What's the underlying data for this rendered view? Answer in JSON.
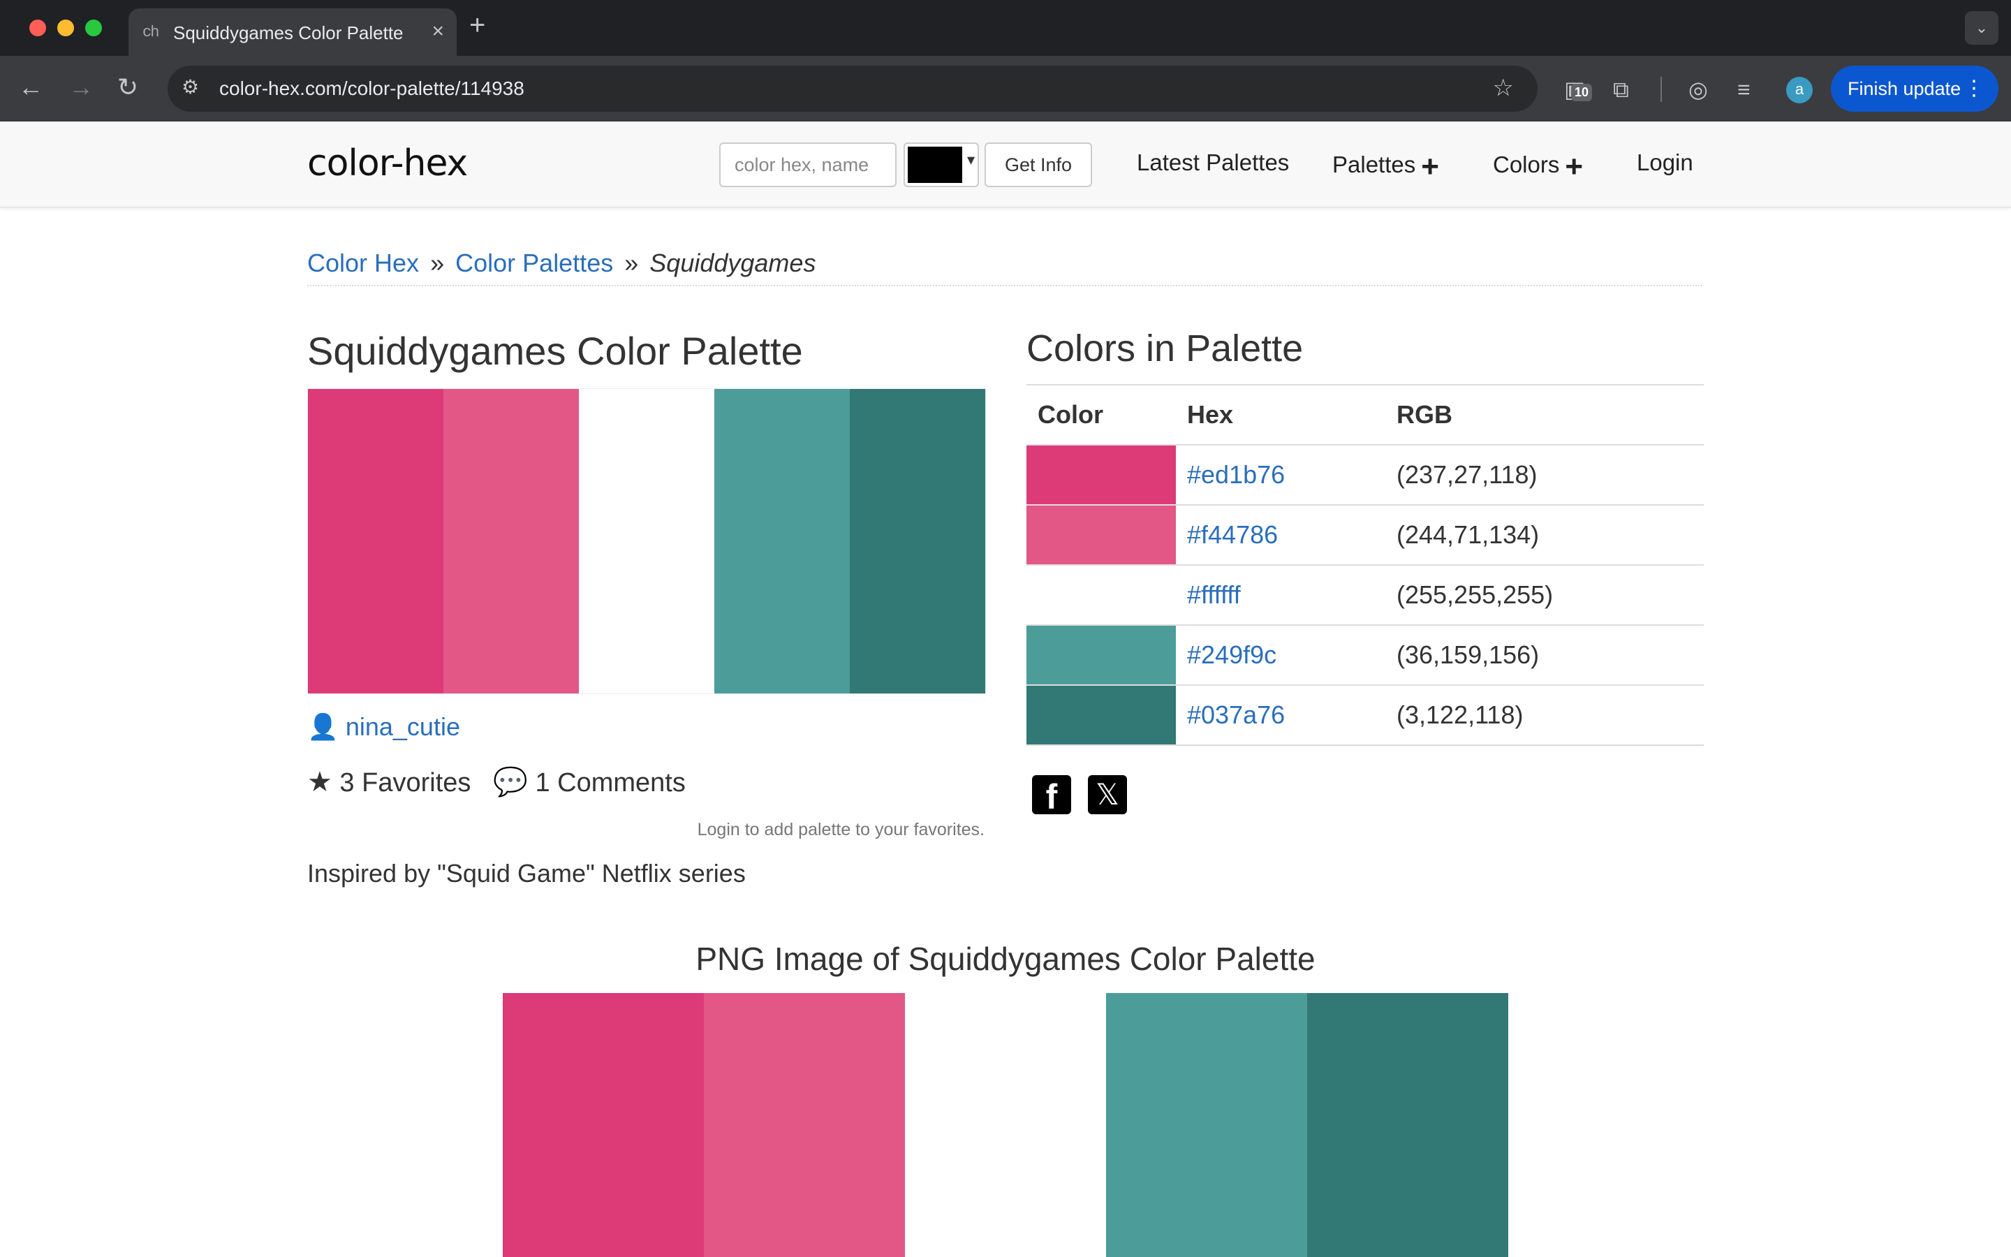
{
  "browser": {
    "tab_title": "Squiddygames Color Palette",
    "tab_favicon": "ch",
    "url": "color-hex.com/color-palette/114938",
    "ext_badge": "10",
    "profile_initial": "a",
    "finish_update_label": "Finish update"
  },
  "header": {
    "logo": "color-hex",
    "search_placeholder": "color hex, name",
    "get_info_label": "Get Info",
    "nav": {
      "latest": "Latest Palettes",
      "palettes": "Palettes",
      "colors": "Colors",
      "login": "Login"
    }
  },
  "breadcrumb": {
    "home": "Color Hex",
    "sep": "»",
    "palettes": "Color Palettes",
    "current": "Squiddygames"
  },
  "palette": {
    "title": "Squiddygames Color Palette",
    "author": "nina_cutie",
    "favorites": "3 Favorites",
    "comments": "1 Comments",
    "login_note": "Login to add palette to your favorites.",
    "description": "Inspired by \"Squid Game\" Netflix series",
    "colors": [
      {
        "hex": "#ed1b76",
        "rgb": "(237,27,118)",
        "swatch": "#dd3a78"
      },
      {
        "hex": "#f44786",
        "rgb": "(244,71,134)",
        "swatch": "#e25786"
      },
      {
        "hex": "#ffffff",
        "rgb": "(255,255,255)",
        "swatch": "#ffffff"
      },
      {
        "hex": "#249f9c",
        "rgb": "(36,159,156)",
        "swatch": "#4c9d9a"
      },
      {
        "hex": "#037a76",
        "rgb": "(3,122,118)",
        "swatch": "#327875"
      }
    ]
  },
  "colors_table": {
    "heading": "Colors in Palette",
    "col_color": "Color",
    "col_hex": "Hex",
    "col_rgb": "RGB"
  },
  "png": {
    "heading": "PNG Image of Squiddygames Color Palette"
  },
  "icons": {
    "facebook": "f",
    "x": "𝕏"
  }
}
